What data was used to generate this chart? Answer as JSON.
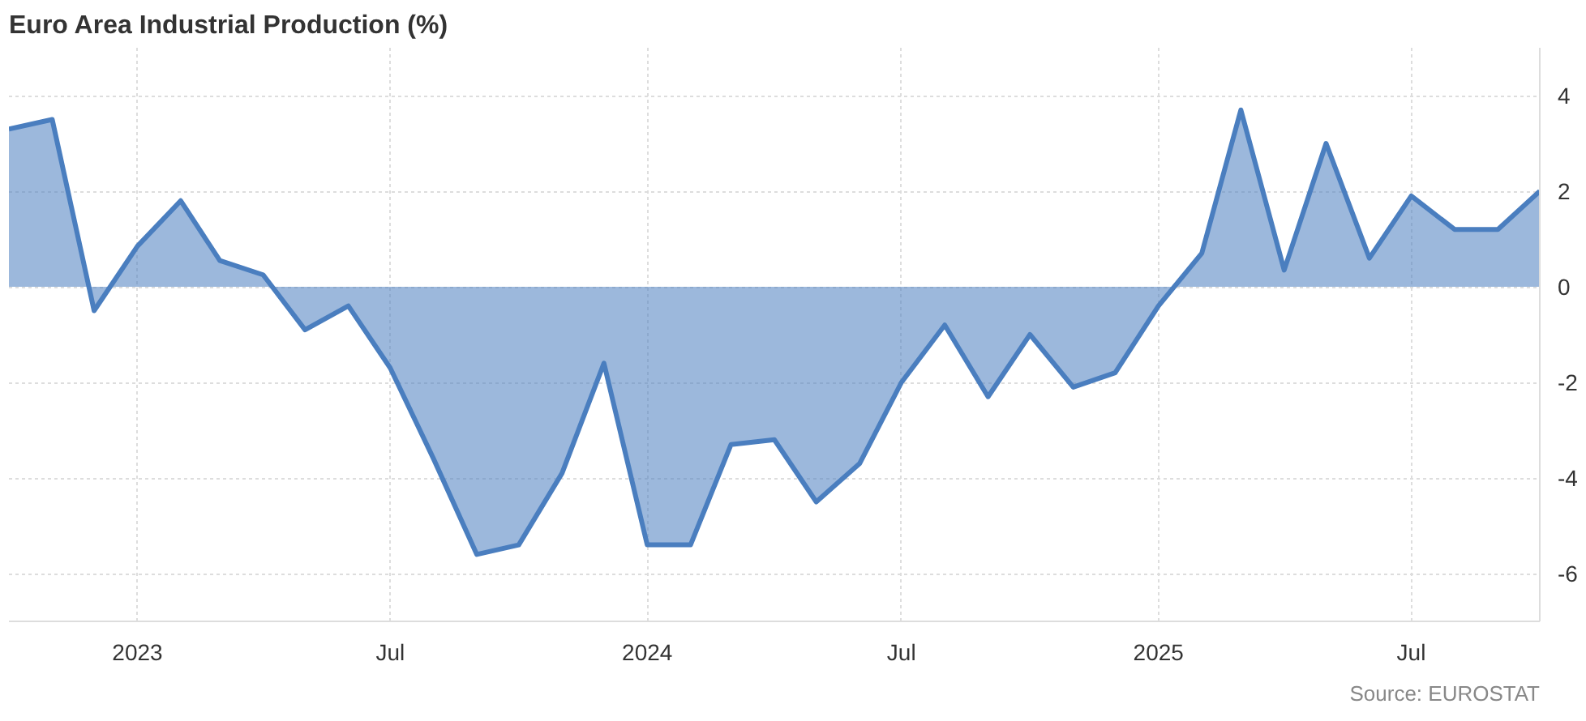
{
  "chart_data": {
    "type": "area",
    "title": "Euro Area Industrial Production (%)",
    "annotations": [
      "Source: EUROSTAT"
    ],
    "x": [
      "2022-10",
      "2022-11",
      "2022-12",
      "2023-01",
      "2023-02",
      "2023-03",
      "2023-04",
      "2023-05",
      "2023-06",
      "2023-07",
      "2023-08",
      "2023-09",
      "2023-10",
      "2023-11",
      "2023-12",
      "2024-01",
      "2024-02",
      "2024-03",
      "2024-04",
      "2024-05",
      "2024-06",
      "2024-07",
      "2024-08",
      "2024-09",
      "2024-10",
      "2024-11",
      "2024-12",
      "2025-01",
      "2025-02",
      "2025-03",
      "2025-04",
      "2025-05",
      "2025-06",
      "2025-07",
      "2025-08",
      "2025-09",
      "2025-10"
    ],
    "series": [
      {
        "color": "#4a7ebf",
        "values": [
          3.3,
          3.5,
          -0.5,
          0.85,
          1.8,
          0.55,
          0.25,
          -0.9,
          -0.4,
          -1.7,
          -3.6,
          -5.6,
          -5.4,
          -3.9,
          -1.6,
          -5.4,
          -5.4,
          -3.3,
          -3.2,
          -4.5,
          -3.7,
          -2.0,
          -0.8,
          -2.3,
          -1.0,
          -2.1,
          -1.8,
          -0.4,
          0.7,
          3.7,
          0.35,
          3.0,
          0.6,
          1.9,
          1.2,
          1.2,
          2.0
        ]
      }
    ],
    "xlim": [
      "2022-10",
      "2025-10"
    ],
    "xticks": [
      "2023",
      {
        "value": "2023-07",
        "label": "Jul"
      },
      "2024",
      {
        "value": "2024-07",
        "label": "Jul"
      },
      "2025",
      {
        "value": "2025-07",
        "label": "Jul"
      }
    ],
    "ylim": [
      -7,
      5
    ],
    "yticks": [
      -6,
      -4,
      -2,
      0,
      2,
      4
    ],
    "grid": true,
    "line_style": "solid",
    "marker": "none"
  }
}
